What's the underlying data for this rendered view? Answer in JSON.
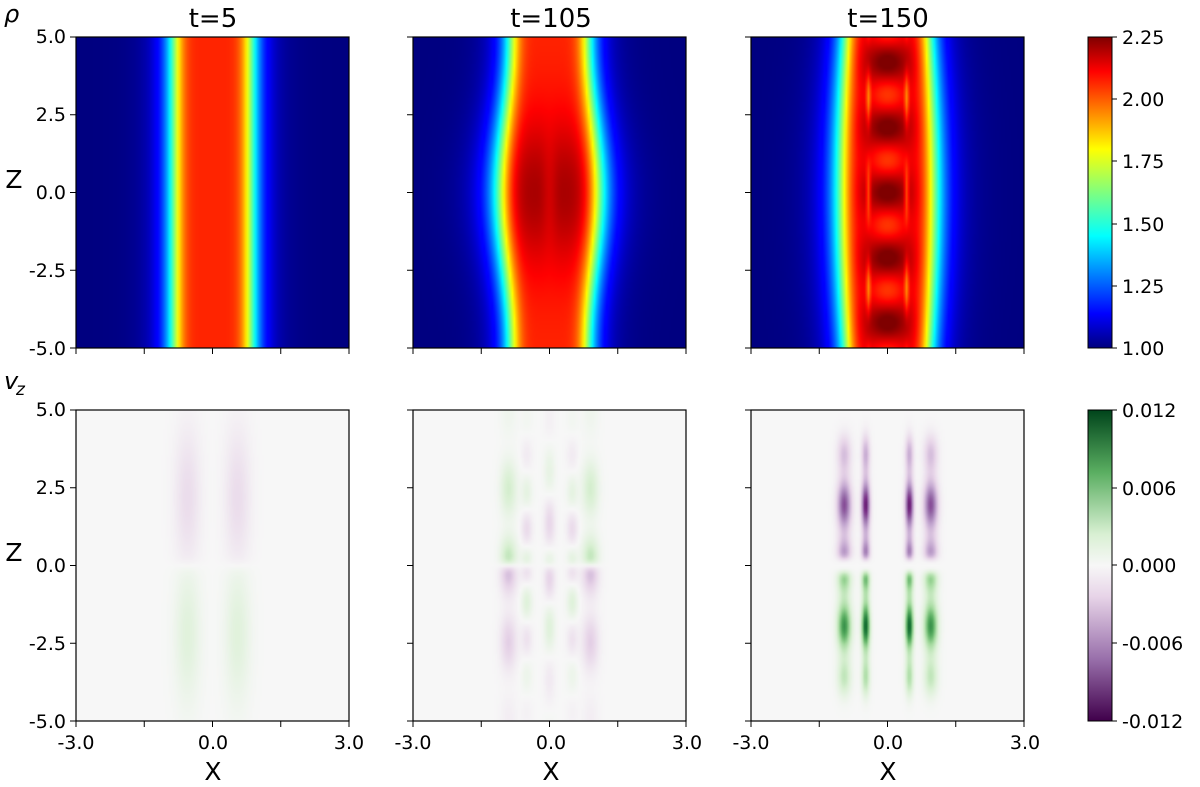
{
  "chart_data": {
    "type": "heatmap",
    "panel_titles": [
      "t=5",
      "t=105",
      "t=150"
    ],
    "rows": [
      {
        "quantity": "ρ",
        "subscript": "",
        "colormap": "jet",
        "colorbar": {
          "range": [
            1.0,
            2.25
          ],
          "ticks": [
            "2.25",
            "2.00",
            "1.75",
            "1.50",
            "1.25",
            "1.00"
          ]
        },
        "panels": [
          {
            "time": 5,
            "peak": 2.05,
            "width": 0.9,
            "stripes": 0
          },
          {
            "time": 105,
            "peak": 2.2,
            "width": 0.9,
            "stripes": 0
          },
          {
            "time": 150,
            "peak": 2.15,
            "width": 0.95,
            "stripes": 1
          }
        ]
      },
      {
        "quantity": "v",
        "subscript": "z",
        "colormap": "PRGn",
        "colorbar": {
          "range": [
            -0.012,
            0.012
          ],
          "ticks": [
            "0.012",
            "0.006",
            "0.000",
            "-0.006",
            "-0.012"
          ]
        },
        "panels": [
          {
            "time": 5,
            "amplitude": 0.0018
          },
          {
            "time": 105,
            "amplitude": 0.006
          },
          {
            "time": 150,
            "amplitude": 0.012
          }
        ]
      }
    ],
    "x": {
      "label": "X",
      "range": [
        -3.0,
        3.0
      ],
      "tick_labels": [
        "-3.0",
        "0.0",
        "3.0"
      ]
    },
    "z": {
      "label": "Z",
      "range": [
        -5.0,
        5.0
      ],
      "tick_labels": [
        "5.0",
        "2.5",
        "0.0",
        "-2.5",
        "-5.0"
      ]
    }
  }
}
